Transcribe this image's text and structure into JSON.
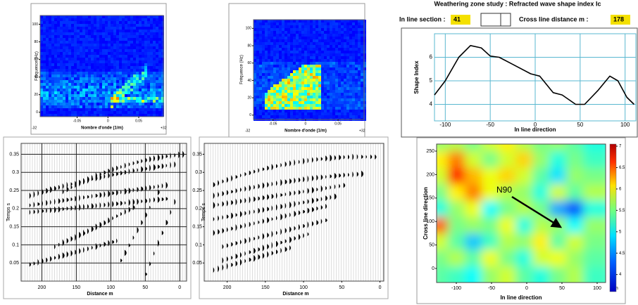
{
  "header": {
    "title": "Weathering zone study : Refracted wave shape index Ic",
    "in_line_label": "In line section :",
    "in_line_value": "41",
    "cross_label": "Cross line distance m :",
    "cross_value": "178"
  },
  "chart_data": [
    {
      "type": "spectrum",
      "xlabel": "Nombre d'onde (1/m)",
      "ylabel": "Fréquence (Hz)",
      "xlim": [
        -0.11,
        0.09
      ],
      "ylim": [
        -5,
        110
      ],
      "xticks": [
        -0.05,
        0,
        0.05
      ],
      "yticks": [
        0,
        20,
        40,
        60,
        80,
        100
      ],
      "x_end_labels": [
        "-32",
        "+32"
      ]
    },
    {
      "type": "spectrum",
      "xlabel": "Nombre d'onde (1/m)",
      "ylabel": "Fréquence (Hz)",
      "xlim": [
        -0.08,
        0.09
      ],
      "ylim": [
        -5,
        110
      ],
      "xticks": [
        -0.05,
        0,
        0.05
      ],
      "yticks": [
        0,
        20,
        40,
        60,
        80,
        100
      ],
      "x_end_labels": [
        "-32",
        "+32"
      ]
    },
    {
      "type": "line",
      "ylabel": "Shape Index",
      "xlabel": "In line direction",
      "xlim": [
        -112,
        112
      ],
      "ylim": [
        3.3,
        7
      ],
      "xticks": [
        -100,
        -50,
        0,
        50,
        100
      ],
      "yticks": [
        4,
        5,
        6
      ],
      "grid": true,
      "color": "#000000",
      "x": [
        -112,
        -100,
        -85,
        -72,
        -60,
        -50,
        -40,
        -25,
        -5,
        5,
        20,
        30,
        45,
        55,
        70,
        83,
        92,
        102,
        110
      ],
      "values": [
        4.4,
        5.0,
        6.0,
        6.5,
        6.4,
        6.05,
        6.0,
        5.7,
        5.3,
        5.2,
        4.5,
        4.4,
        4.0,
        4.0,
        4.6,
        5.2,
        5.0,
        4.3,
        4.0
      ]
    },
    {
      "type": "seismic",
      "xlabel": "Distance m",
      "ylabel": "Temps s",
      "xlim": [
        230,
        -10
      ],
      "ylim": [
        0,
        0.38
      ],
      "xticks": [
        200,
        150,
        100,
        50,
        0
      ],
      "yticks": [
        0.05,
        0.1,
        0.15,
        0.2,
        0.25,
        0.3,
        0.35
      ],
      "grid": true
    },
    {
      "type": "seismic",
      "xlabel": "Distance m",
      "ylabel": "Temps s",
      "xlim": [
        230,
        -5
      ],
      "ylim": [
        0,
        0.38
      ],
      "xticks": [
        200,
        150,
        100,
        50,
        0
      ],
      "yticks": [
        0.05,
        0.1,
        0.15,
        0.2,
        0.25,
        0.3,
        0.35
      ],
      "grid": false
    },
    {
      "type": "heatmap",
      "xlabel": "In line direction",
      "ylabel": "Cross line direction",
      "x_unit": "m",
      "annotation": "N90",
      "xlim": [
        -128,
        112
      ],
      "ylim": [
        -30,
        265
      ],
      "xticks": [
        -100,
        -50,
        0,
        50,
        100
      ],
      "yticks": [
        0,
        50,
        100,
        150,
        200,
        250
      ],
      "zlim": [
        3.6,
        7.05
      ],
      "zticks": [
        4,
        4.5,
        5,
        5.5,
        6,
        6.5,
        7
      ],
      "x": [
        -116,
        -92,
        -68,
        -44,
        -20,
        4,
        28,
        52,
        76,
        100
      ],
      "y": [
        255,
        220,
        185,
        150,
        115,
        80,
        45,
        10,
        -25
      ],
      "values": [
        [
          5.4,
          5.5,
          5.3,
          5.6,
          5.8,
          5.5,
          5.3,
          5.4,
          5.2,
          5.0
        ],
        [
          5.8,
          6.2,
          5.6,
          5.3,
          5.6,
          5.9,
          5.4,
          5.0,
          5.3,
          5.1
        ],
        [
          5.6,
          6.6,
          6.0,
          5.7,
          5.9,
          5.6,
          5.2,
          4.8,
          5.4,
          5.3
        ],
        [
          5.3,
          5.8,
          6.2,
          5.7,
          5.5,
          5.4,
          5.0,
          5.6,
          5.2,
          5.5
        ],
        [
          5.0,
          5.4,
          5.7,
          4.9,
          5.3,
          5.5,
          5.3,
          4.6,
          4.3,
          5.0
        ],
        [
          6.3,
          5.3,
          5.4,
          5.3,
          5.7,
          5.0,
          5.5,
          5.4,
          4.9,
          5.4
        ],
        [
          5.6,
          5.2,
          4.7,
          5.1,
          5.5,
          5.4,
          5.8,
          5.2,
          5.6,
          5.3
        ],
        [
          5.3,
          5.5,
          5.2,
          5.7,
          5.3,
          5.0,
          5.6,
          5.7,
          5.4,
          5.2
        ],
        [
          5.2,
          5.1,
          4.9,
          5.4,
          5.6,
          5.2,
          5.0,
          5.3,
          5.5,
          5.1
        ]
      ]
    }
  ]
}
